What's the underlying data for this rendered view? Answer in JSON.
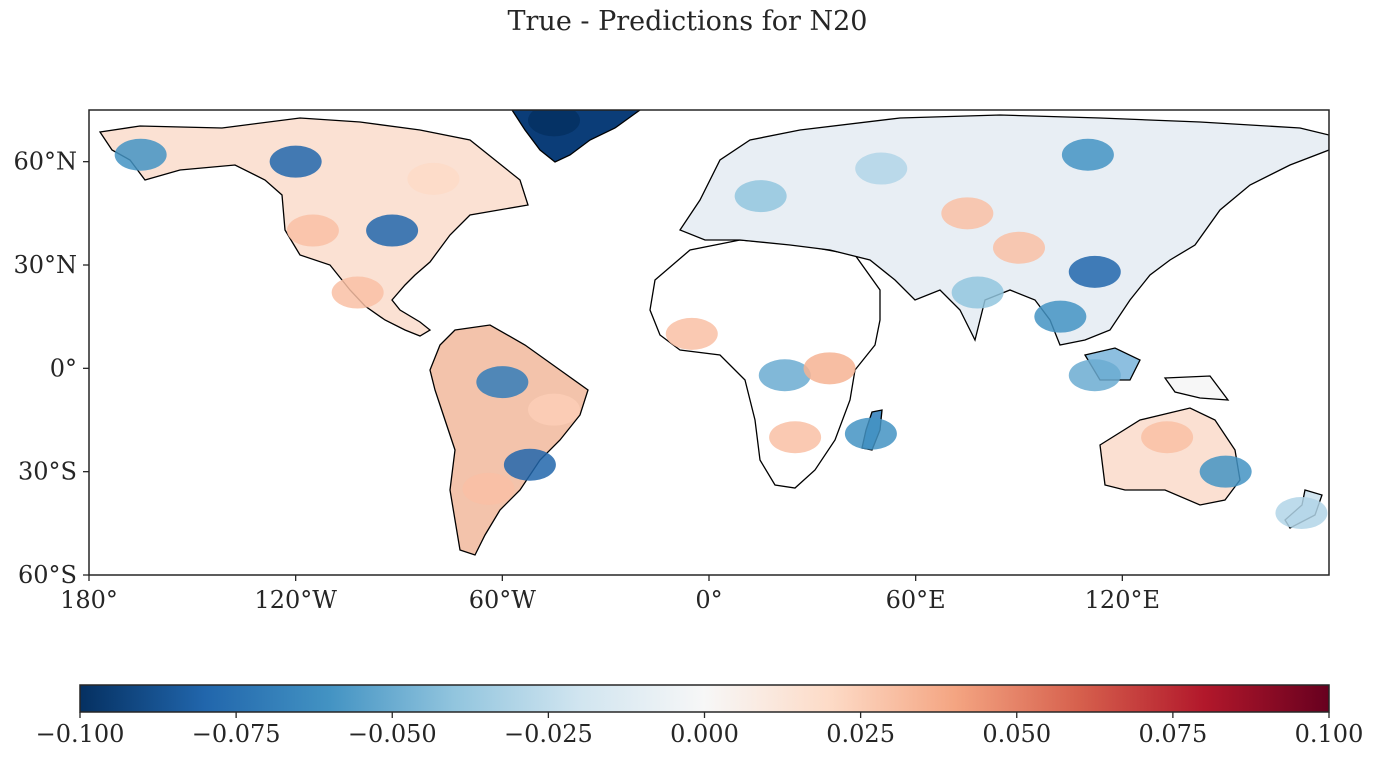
{
  "title": "True - Predictions for N20",
  "map": {
    "projection": "PlateCarree",
    "lon_range": [
      -180,
      180
    ],
    "lat_range": [
      -60,
      75
    ],
    "lat_ticks": [
      {
        "value": 60,
        "label": "60°N"
      },
      {
        "value": 30,
        "label": "30°N"
      },
      {
        "value": 0,
        "label": "0°"
      },
      {
        "value": -30,
        "label": "30°S"
      },
      {
        "value": -60,
        "label": "60°S"
      }
    ],
    "lon_ticks": [
      {
        "value": -180,
        "label": "180°"
      },
      {
        "value": -120,
        "label": "120°W"
      },
      {
        "value": -60,
        "label": "60°W"
      },
      {
        "value": 0,
        "label": "0°"
      },
      {
        "value": 60,
        "label": "60°E"
      },
      {
        "value": 120,
        "label": "120°E"
      }
    ],
    "regions": [
      {
        "name": "alaska-canada-north",
        "lon": -165,
        "lat": 62,
        "value": -0.06
      },
      {
        "name": "canada-central",
        "lon": -120,
        "lat": 60,
        "value": -0.08
      },
      {
        "name": "canada-east",
        "lon": -80,
        "lat": 55,
        "value": 0.02
      },
      {
        "name": "usa-west",
        "lon": -115,
        "lat": 40,
        "value": 0.03
      },
      {
        "name": "usa-midwest",
        "lon": -92,
        "lat": 40,
        "value": -0.08
      },
      {
        "name": "greenland",
        "lon": -45,
        "lat": 72,
        "value": -0.1
      },
      {
        "name": "mexico",
        "lon": -102,
        "lat": 22,
        "value": 0.03
      },
      {
        "name": "amazon",
        "lon": -60,
        "lat": -4,
        "value": -0.07
      },
      {
        "name": "brazil-east",
        "lon": -45,
        "lat": -12,
        "value": 0.025
      },
      {
        "name": "argentina",
        "lon": -64,
        "lat": -35,
        "value": 0.03
      },
      {
        "name": "southern-brazil",
        "lon": -52,
        "lat": -28,
        "value": -0.08
      },
      {
        "name": "west-africa",
        "lon": -5,
        "lat": 10,
        "value": 0.03
      },
      {
        "name": "congo",
        "lon": 22,
        "lat": -2,
        "value": -0.05
      },
      {
        "name": "east-africa",
        "lon": 35,
        "lat": 0,
        "value": 0.035
      },
      {
        "name": "southern-africa",
        "lon": 25,
        "lat": -20,
        "value": 0.03
      },
      {
        "name": "madagascar",
        "lon": 47,
        "lat": -19,
        "value": -0.06
      },
      {
        "name": "europe",
        "lon": 15,
        "lat": 50,
        "value": -0.04
      },
      {
        "name": "russia-west",
        "lon": 50,
        "lat": 58,
        "value": -0.03
      },
      {
        "name": "siberia",
        "lon": 110,
        "lat": 62,
        "value": -0.06
      },
      {
        "name": "central-asia",
        "lon": 75,
        "lat": 45,
        "value": 0.03
      },
      {
        "name": "china-west",
        "lon": 90,
        "lat": 35,
        "value": 0.03
      },
      {
        "name": "china-east",
        "lon": 112,
        "lat": 28,
        "value": -0.08
      },
      {
        "name": "india",
        "lon": 78,
        "lat": 22,
        "value": -0.04
      },
      {
        "name": "southeast-asia",
        "lon": 102,
        "lat": 15,
        "value": -0.06
      },
      {
        "name": "indonesia",
        "lon": 112,
        "lat": -2,
        "value": -0.05
      },
      {
        "name": "australia-north",
        "lon": 133,
        "lat": -20,
        "value": 0.03
      },
      {
        "name": "australia-east",
        "lon": 150,
        "lat": -30,
        "value": -0.06
      },
      {
        "name": "new-zealand",
        "lon": 172,
        "lat": -42,
        "value": -0.03
      }
    ]
  },
  "colorbar": {
    "cmap": "RdBu_r",
    "vmin": -0.1,
    "vmax": 0.1,
    "ticks": [
      {
        "value": -0.1,
        "label": "−0.100"
      },
      {
        "value": -0.075,
        "label": "−0.075"
      },
      {
        "value": -0.05,
        "label": "−0.050"
      },
      {
        "value": -0.025,
        "label": "−0.025"
      },
      {
        "value": 0.0,
        "label": "0.000"
      },
      {
        "value": 0.025,
        "label": "0.025"
      },
      {
        "value": 0.05,
        "label": "0.050"
      },
      {
        "value": 0.075,
        "label": "0.075"
      },
      {
        "value": 0.1,
        "label": "0.100"
      }
    ],
    "colors": [
      "#053061",
      "#2166ac",
      "#4393c3",
      "#92c5de",
      "#d1e5f0",
      "#f7f7f7",
      "#fddbc7",
      "#f4a582",
      "#d6604d",
      "#b2182b",
      "#67001f"
    ]
  }
}
